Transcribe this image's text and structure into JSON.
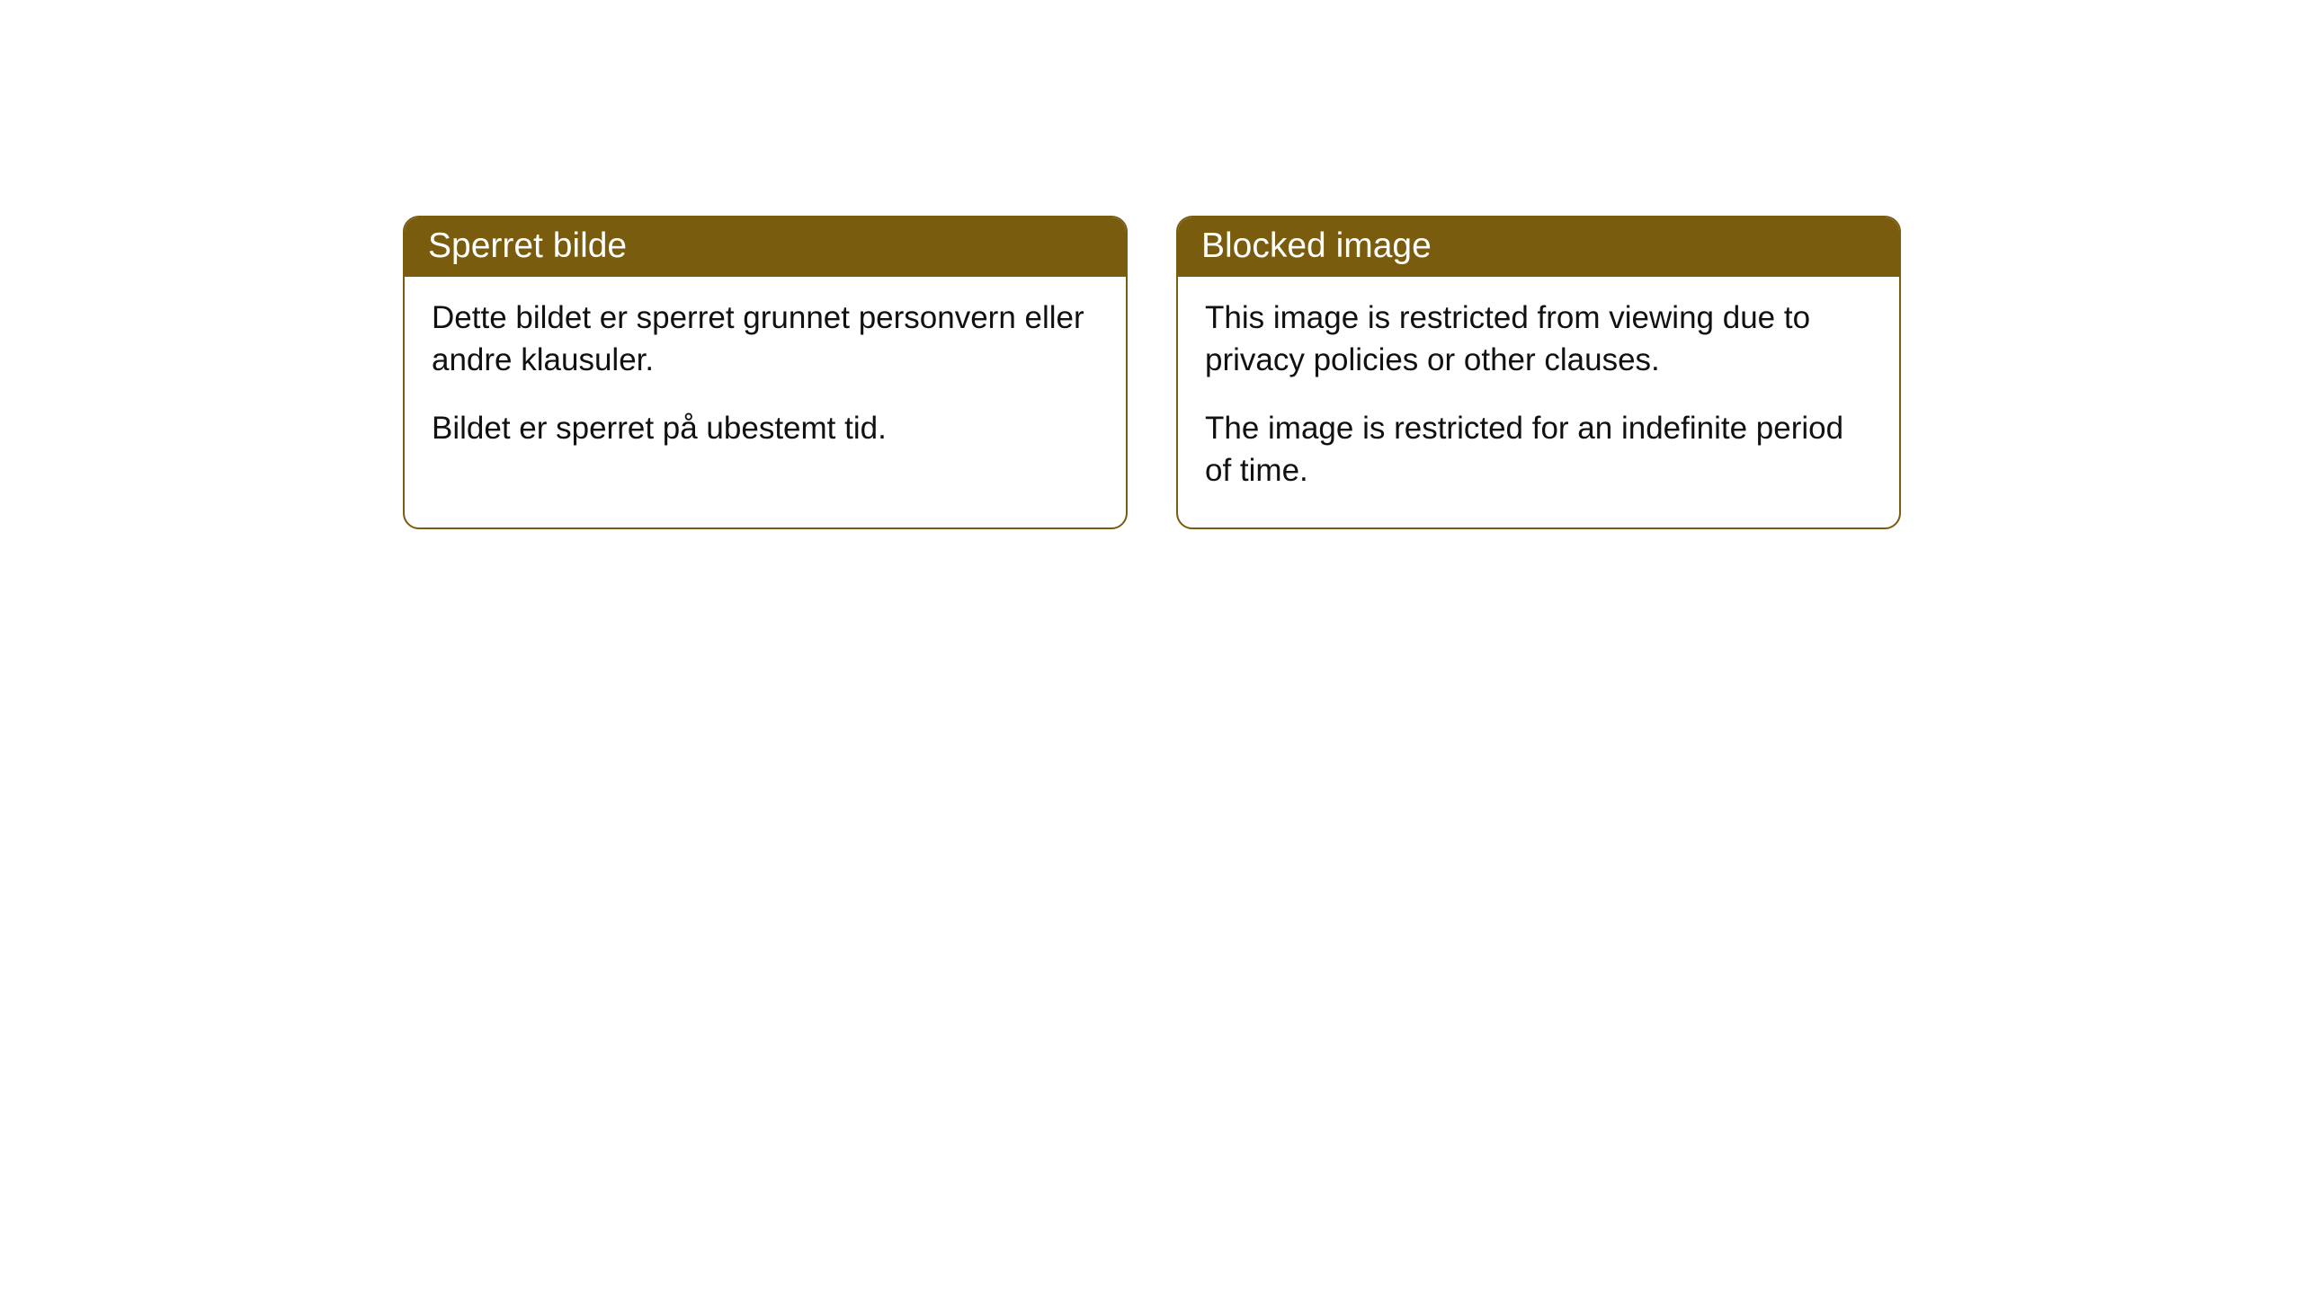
{
  "cards": [
    {
      "title": "Sperret bilde",
      "para1": "Dette bildet er sperret grunnet personvern eller andre klausuler.",
      "para2": "Bildet er sperret på ubestemt tid."
    },
    {
      "title": "Blocked image",
      "para1": "This image is restricted from viewing due to privacy policies or other clauses.",
      "para2": "The image is restricted for an indefinite period of time."
    }
  ],
  "style": {
    "header_bg": "#7a5c0f",
    "header_text_color": "#ffffff",
    "border_color": "#7a5c0f",
    "body_text_color": "#111111",
    "background_color": "#ffffff",
    "border_radius": 18,
    "title_fontsize": 39,
    "body_fontsize": 35
  }
}
